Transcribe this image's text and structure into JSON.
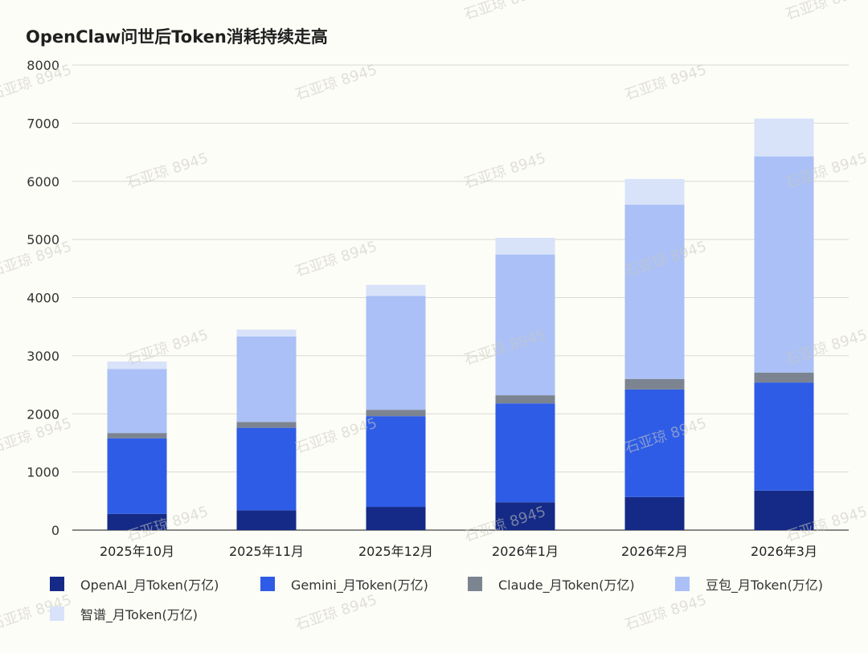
{
  "chart_data": {
    "type": "bar",
    "stacked": true,
    "title": "OpenClaw问世后Token消耗持续走高",
    "categories": [
      "2025年10月",
      "2025年11月",
      "2025年12月",
      "2026年1月",
      "2026年2月",
      "2026年3月"
    ],
    "ylim": [
      0,
      8000
    ],
    "yticks": [
      0,
      1000,
      2000,
      3000,
      4000,
      5000,
      6000,
      7000,
      8000
    ],
    "grid": true,
    "legend_position": "bottom-left",
    "series": [
      {
        "name": "OpenAI_月Token(万亿)",
        "color": "#142a86",
        "values": [
          280,
          340,
          400,
          480,
          570,
          680
        ]
      },
      {
        "name": "Gemini_月Token(万亿)",
        "color": "#2e5ce6",
        "values": [
          1300,
          1420,
          1560,
          1700,
          1850,
          1860
        ]
      },
      {
        "name": "Claude_月Token(万亿)",
        "color": "#7b8490",
        "values": [
          90,
          100,
          110,
          140,
          180,
          170
        ]
      },
      {
        "name": "豆包_月Token(万亿)",
        "color": "#aac0f6",
        "values": [
          1100,
          1470,
          1960,
          2420,
          3000,
          3720
        ]
      },
      {
        "name": "智谱_月Token(万亿)",
        "color": "#d8e3fa",
        "values": [
          130,
          120,
          190,
          290,
          440,
          650
        ]
      }
    ]
  },
  "watermark": "石亚琼 8945"
}
